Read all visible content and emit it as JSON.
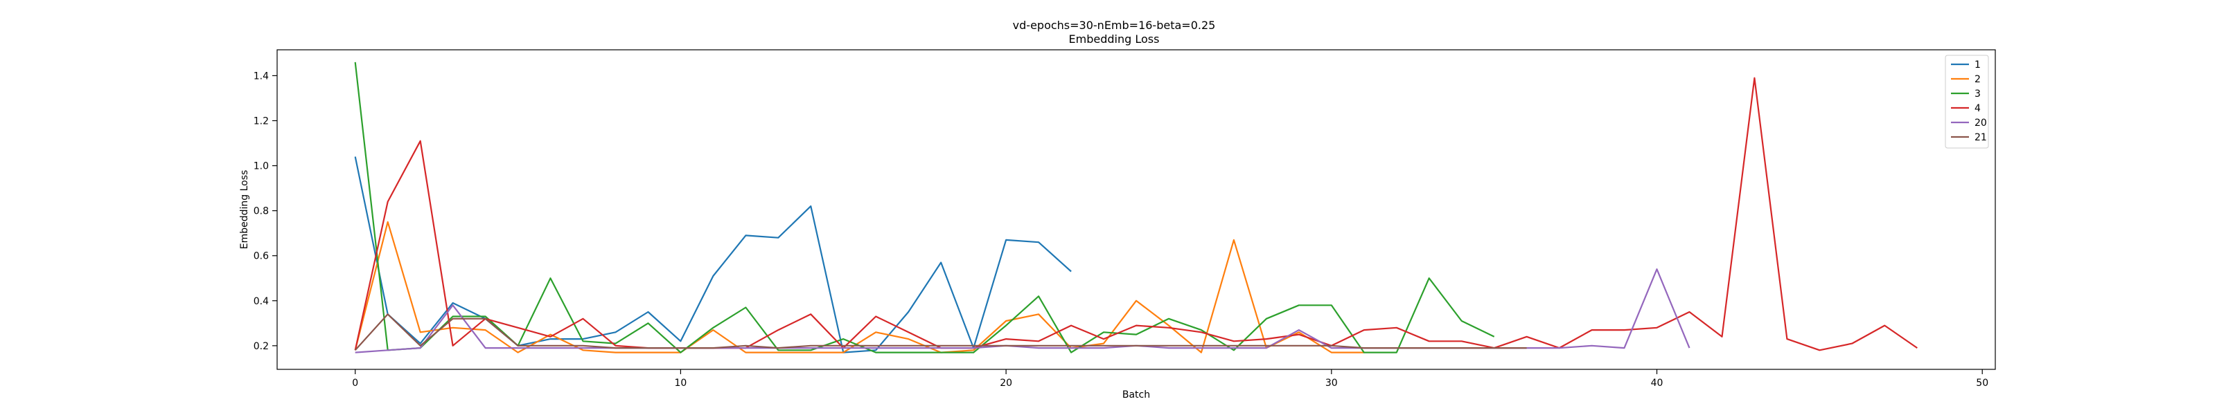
{
  "chart_data": {
    "type": "line",
    "title": "vd-epochs=30-nEmb=16-beta=0.25",
    "subtitle": "Embedding Loss",
    "xlabel": "Batch",
    "ylabel": "Embedding Loss",
    "xlim": [
      -2.4,
      50.4
    ],
    "ylim": [
      0.095,
      1.515
    ],
    "xticks": [
      0,
      10,
      20,
      30,
      40,
      50
    ],
    "yticks": [
      0.2,
      0.4,
      0.6,
      0.8,
      1.0,
      1.2,
      1.4
    ],
    "xtick_labels": [
      "0",
      "10",
      "20",
      "30",
      "40",
      "50"
    ],
    "ytick_labels": [
      "0.2",
      "0.4",
      "0.6",
      "0.8",
      "1.0",
      "1.2",
      "1.4"
    ],
    "grid": false,
    "legend_position": "top-right",
    "series": [
      {
        "name": "1",
        "color": "#1f77b4",
        "x": [
          0,
          1,
          2,
          3,
          4,
          5,
          6,
          7,
          8,
          9,
          10,
          11,
          12,
          13,
          14,
          15,
          16,
          17,
          18,
          19,
          20,
          21,
          22
        ],
        "values": [
          1.04,
          0.34,
          0.21,
          0.39,
          0.32,
          0.2,
          0.23,
          0.23,
          0.26,
          0.35,
          0.22,
          0.51,
          0.69,
          0.68,
          0.82,
          0.17,
          0.18,
          0.35,
          0.57,
          0.19,
          0.67,
          0.66,
          0.53
        ]
      },
      {
        "name": "2",
        "color": "#ff7f0e",
        "x": [
          0,
          1,
          2,
          3,
          4,
          5,
          6,
          7,
          8,
          9,
          10,
          11,
          12,
          13,
          14,
          15,
          16,
          17,
          18,
          19,
          20,
          21,
          22,
          23,
          24,
          25,
          26,
          27,
          28,
          29,
          30,
          31
        ],
        "values": [
          0.18,
          0.75,
          0.26,
          0.28,
          0.27,
          0.17,
          0.25,
          0.18,
          0.17,
          0.17,
          0.17,
          0.27,
          0.17,
          0.17,
          0.17,
          0.17,
          0.26,
          0.23,
          0.17,
          0.18,
          0.31,
          0.34,
          0.19,
          0.21,
          0.4,
          0.29,
          0.17,
          0.67,
          0.19,
          0.26,
          0.17,
          0.17
        ]
      },
      {
        "name": "3",
        "color": "#2ca02c",
        "x": [
          0,
          1,
          2,
          3,
          4,
          5,
          6,
          7,
          8,
          9,
          10,
          11,
          12,
          13,
          14,
          15,
          16,
          17,
          18,
          19,
          20,
          21,
          22,
          23,
          24,
          25,
          26,
          27,
          28,
          29,
          30,
          31,
          32,
          33,
          34,
          35
        ],
        "values": [
          1.46,
          0.18,
          0.19,
          0.33,
          0.33,
          0.2,
          0.5,
          0.22,
          0.21,
          0.3,
          0.17,
          0.28,
          0.37,
          0.18,
          0.18,
          0.23,
          0.17,
          0.17,
          0.17,
          0.17,
          0.29,
          0.42,
          0.17,
          0.26,
          0.25,
          0.32,
          0.27,
          0.18,
          0.32,
          0.38,
          0.38,
          0.17,
          0.17,
          0.5,
          0.31,
          0.24
        ]
      },
      {
        "name": "4",
        "color": "#d62728",
        "x": [
          0,
          1,
          2,
          3,
          4,
          5,
          6,
          7,
          8,
          9,
          10,
          11,
          12,
          13,
          14,
          15,
          16,
          17,
          18,
          19,
          20,
          21,
          22,
          23,
          24,
          25,
          26,
          27,
          28,
          29,
          30,
          31,
          32,
          33,
          34,
          35,
          36,
          37,
          38,
          39,
          40,
          41,
          42,
          43,
          44,
          45,
          46,
          47,
          48
        ],
        "values": [
          0.18,
          0.84,
          1.11,
          0.2,
          0.32,
          0.28,
          0.24,
          0.32,
          0.2,
          0.19,
          0.19,
          0.19,
          0.19,
          0.27,
          0.34,
          0.19,
          0.33,
          0.26,
          0.19,
          0.19,
          0.23,
          0.22,
          0.29,
          0.23,
          0.29,
          0.28,
          0.26,
          0.22,
          0.23,
          0.25,
          0.2,
          0.27,
          0.28,
          0.22,
          0.22,
          0.19,
          0.24,
          0.19,
          0.27,
          0.27,
          0.28,
          0.35,
          0.24,
          1.39,
          0.23,
          0.18,
          0.21,
          0.29,
          0.19
        ]
      },
      {
        "name": "20",
        "color": "#9467bd",
        "x": [
          0,
          1,
          2,
          3,
          4,
          5,
          6,
          7,
          8,
          9,
          10,
          11,
          12,
          13,
          14,
          15,
          16,
          17,
          18,
          19,
          20,
          21,
          22,
          23,
          24,
          25,
          26,
          27,
          28,
          29,
          30,
          31,
          32,
          33,
          34,
          35,
          36,
          37,
          38,
          39,
          40,
          41
        ],
        "values": [
          0.17,
          0.18,
          0.19,
          0.38,
          0.19,
          0.19,
          0.19,
          0.19,
          0.19,
          0.19,
          0.19,
          0.19,
          0.19,
          0.19,
          0.19,
          0.19,
          0.19,
          0.19,
          0.19,
          0.19,
          0.2,
          0.19,
          0.19,
          0.19,
          0.2,
          0.19,
          0.19,
          0.19,
          0.19,
          0.27,
          0.19,
          0.19,
          0.19,
          0.19,
          0.19,
          0.19,
          0.19,
          0.19,
          0.2,
          0.19,
          0.54,
          0.19
        ]
      },
      {
        "name": "21",
        "color": "#8c564b",
        "x": [
          0,
          1,
          2,
          3,
          4,
          5,
          6,
          7,
          8,
          9,
          10,
          11,
          12,
          13,
          14,
          15,
          16,
          17,
          18,
          19,
          20,
          21,
          22,
          23,
          24,
          25,
          26,
          27,
          28,
          29,
          30,
          31,
          32,
          33,
          34,
          35,
          36
        ],
        "values": [
          0.18,
          0.34,
          0.2,
          0.32,
          0.32,
          0.2,
          0.2,
          0.2,
          0.19,
          0.19,
          0.19,
          0.19,
          0.2,
          0.19,
          0.2,
          0.2,
          0.2,
          0.2,
          0.2,
          0.2,
          0.2,
          0.2,
          0.2,
          0.2,
          0.2,
          0.2,
          0.2,
          0.2,
          0.2,
          0.2,
          0.2,
          0.19,
          0.19,
          0.19,
          0.19,
          0.19,
          0.19
        ]
      }
    ]
  }
}
